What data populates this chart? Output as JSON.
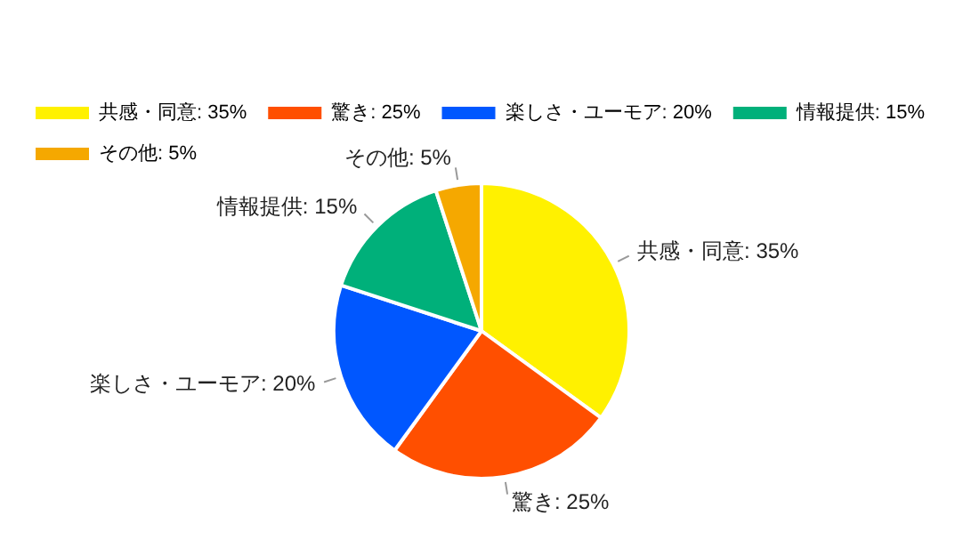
{
  "chart_data": {
    "type": "pie",
    "categories": [
      "共感・同意",
      "驚き",
      "楽しさ・ユーモア",
      "情報提供",
      "その他"
    ],
    "values": [
      35,
      25,
      20,
      15,
      5
    ],
    "value_labels": [
      "35%",
      "25%",
      "20%",
      "15%",
      "5%"
    ],
    "colors": [
      "#fff100",
      "#ff4f00",
      "#0057ff",
      "#00b07a",
      "#f5a800"
    ],
    "legend": "top left"
  }
}
